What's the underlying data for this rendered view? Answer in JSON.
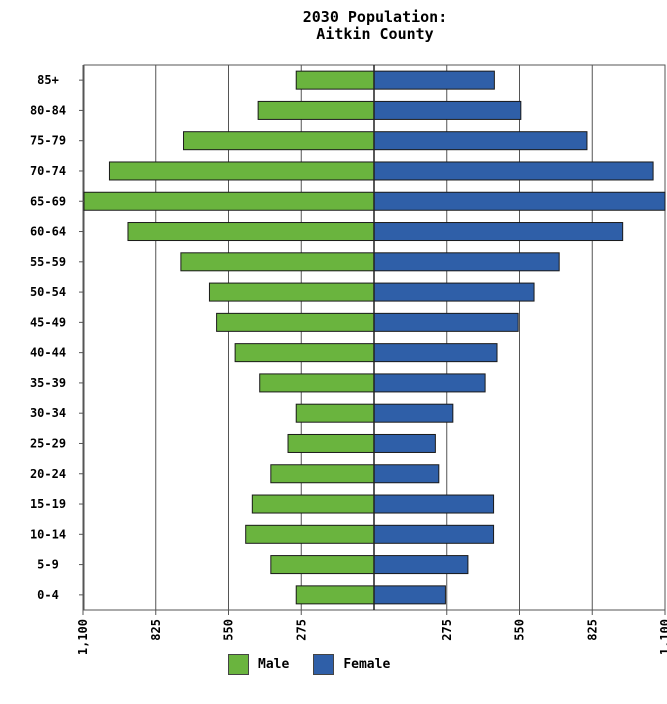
{
  "chart_data": {
    "type": "bar",
    "orientation": "horizontal",
    "title": "2030 Population:",
    "subtitle": "Aitkin County",
    "categories": [
      "85+",
      "80-84",
      "75-79",
      "70-74",
      "65-69",
      "60-64",
      "55-59",
      "50-54",
      "45-49",
      "40-44",
      "35-39",
      "30-34",
      "25-29",
      "20-24",
      "15-19",
      "10-14",
      "5-9",
      "0-4"
    ],
    "series": [
      {
        "name": "Male",
        "color": "#6ab43e",
        "values": [
          294,
          438,
          720,
          1000,
          1110,
          930,
          730,
          622,
          595,
          525,
          432,
          294,
          325,
          390,
          460,
          485,
          390,
          294
        ]
      },
      {
        "name": "Female",
        "color": "#2f5fa8",
        "values": [
          455,
          555,
          805,
          1055,
          1140,
          940,
          700,
          605,
          545,
          465,
          420,
          298,
          232,
          245,
          452,
          452,
          355,
          270
        ]
      }
    ],
    "xticks": [
      "1,100",
      "825",
      "550",
      "275",
      "275",
      "550",
      "825",
      "1,100"
    ],
    "xlim": [
      -1100,
      1100
    ],
    "grid": true,
    "legend": "bottom"
  }
}
